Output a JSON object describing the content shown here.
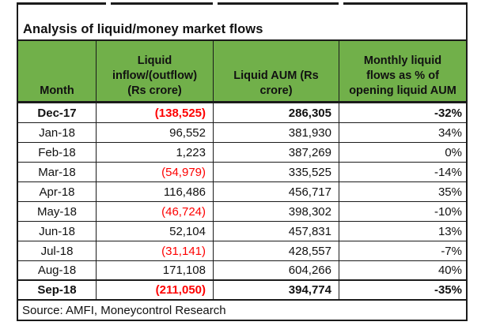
{
  "title": "Analysis of liquid/money market flows",
  "columns": {
    "month": "Month",
    "inflow": "Liquid\ninflow/(outflow)\n(Rs crore)",
    "aum": "Liquid AUM (Rs\ncrore)",
    "pct": "Monthly liquid\nflows as % of\nopening liquid AUM"
  },
  "rows": [
    {
      "month": "Dec-17",
      "inflow": "(138,525)",
      "aum": "286,305",
      "pct": "-32%"
    },
    {
      "month": "Jan-18",
      "inflow": "96,552",
      "aum": "381,930",
      "pct": "34%"
    },
    {
      "month": "Feb-18",
      "inflow": "1,223",
      "aum": "387,269",
      "pct": "0%"
    },
    {
      "month": "Mar-18",
      "inflow": "(54,979)",
      "aum": "335,525",
      "pct": "-14%"
    },
    {
      "month": "Apr-18",
      "inflow": "116,486",
      "aum": "456,717",
      "pct": "35%"
    },
    {
      "month": "May-18",
      "inflow": "(46,724)",
      "aum": "398,302",
      "pct": "-10%"
    },
    {
      "month": "Jun-18",
      "inflow": "52,104",
      "aum": "457,831",
      "pct": "13%"
    },
    {
      "month": "Jul-18",
      "inflow": "(31,141)",
      "aum": "428,557",
      "pct": "-7%"
    },
    {
      "month": "Aug-18",
      "inflow": "171,108",
      "aum": "604,266",
      "pct": "40%"
    },
    {
      "month": "Sep-18",
      "inflow": "(211,050)",
      "aum": "394,774",
      "pct": "-35%"
    }
  ],
  "source": "Source: AMFI, Moneycontrol Research",
  "colors": {
    "header_bg": "#71B04A",
    "negative": "#FE0000",
    "border": "#1B1B1B",
    "text": "#111111"
  }
}
